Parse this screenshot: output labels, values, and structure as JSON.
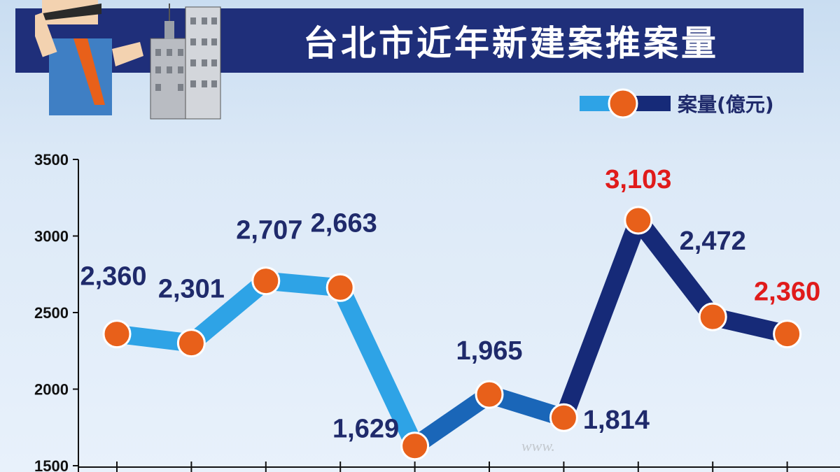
{
  "header": {
    "title": "台北市近年新建案推案量"
  },
  "legend": {
    "label": "案量(億元)"
  },
  "watermark": "www.",
  "colors": {
    "banner": "#1f2f7a",
    "line_light": "#2ea3e6",
    "line_mid": "#1a66b8",
    "line_dark": "#162a78",
    "marker": "#e8601a",
    "label_blue": "#1f2a6b",
    "label_red": "#e01b1b"
  },
  "chart_data": {
    "type": "line",
    "title": "台北市近年新建案推案量",
    "ylabel": "",
    "xlabel": "",
    "ylim": [
      1500,
      3500
    ],
    "yticks": [
      3500,
      3000,
      2500,
      2000,
      1500
    ],
    "grid": false,
    "legend_position": "top-right",
    "series": [
      {
        "name": "案量(億元)",
        "values": [
          2360,
          2301,
          2707,
          2663,
          1629,
          1965,
          1814,
          3103,
          2472,
          2360
        ],
        "labels": [
          "2,360",
          "2,301",
          "2,707",
          "2,663",
          "1,629",
          "1,965",
          "1,814",
          "3,103",
          "2,472",
          "2,360"
        ],
        "highlight": [
          false,
          false,
          false,
          false,
          false,
          false,
          false,
          true,
          false,
          true
        ]
      }
    ]
  }
}
